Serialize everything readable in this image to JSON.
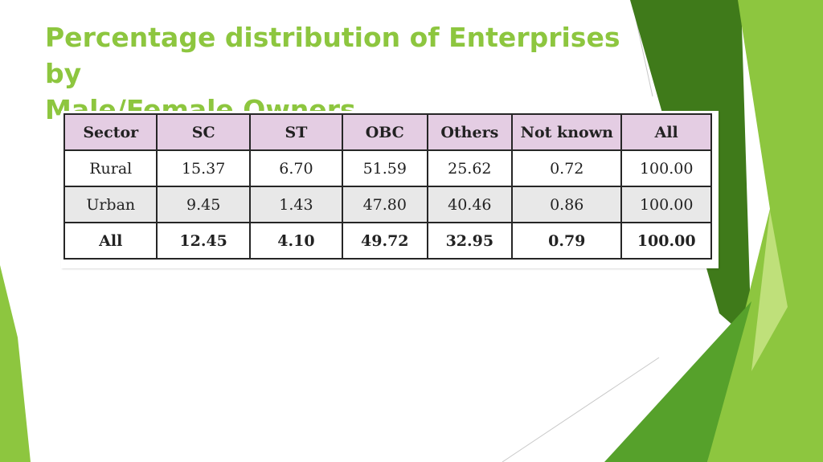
{
  "slide": {
    "title": "Percentage distribution of Enterprises\nby\nMale/Female Owners"
  },
  "table": {
    "headers": [
      "Sector",
      "SC",
      "ST",
      "OBC",
      "Others",
      "Not known",
      "All"
    ],
    "rows": [
      [
        "Rural",
        "15.37",
        "6.70",
        "51.59",
        "25.62",
        "0.72",
        "100.00"
      ],
      [
        "Urban",
        "9.45",
        "1.43",
        "47.80",
        "40.46",
        "0.86",
        "100.00"
      ],
      [
        "All",
        "12.45",
        "4.10",
        "49.72",
        "32.95",
        "0.79",
        "100.00"
      ]
    ]
  },
  "theme": {
    "title_color": "#8dc63f",
    "header_fill": "#e4cde3",
    "stripe_fill": "#e8e8e8",
    "accent_dark": "#3f7a1a",
    "accent_mid": "#56a12b",
    "accent_light": "#8dc63f",
    "accent_pale": "#bfe07a"
  }
}
